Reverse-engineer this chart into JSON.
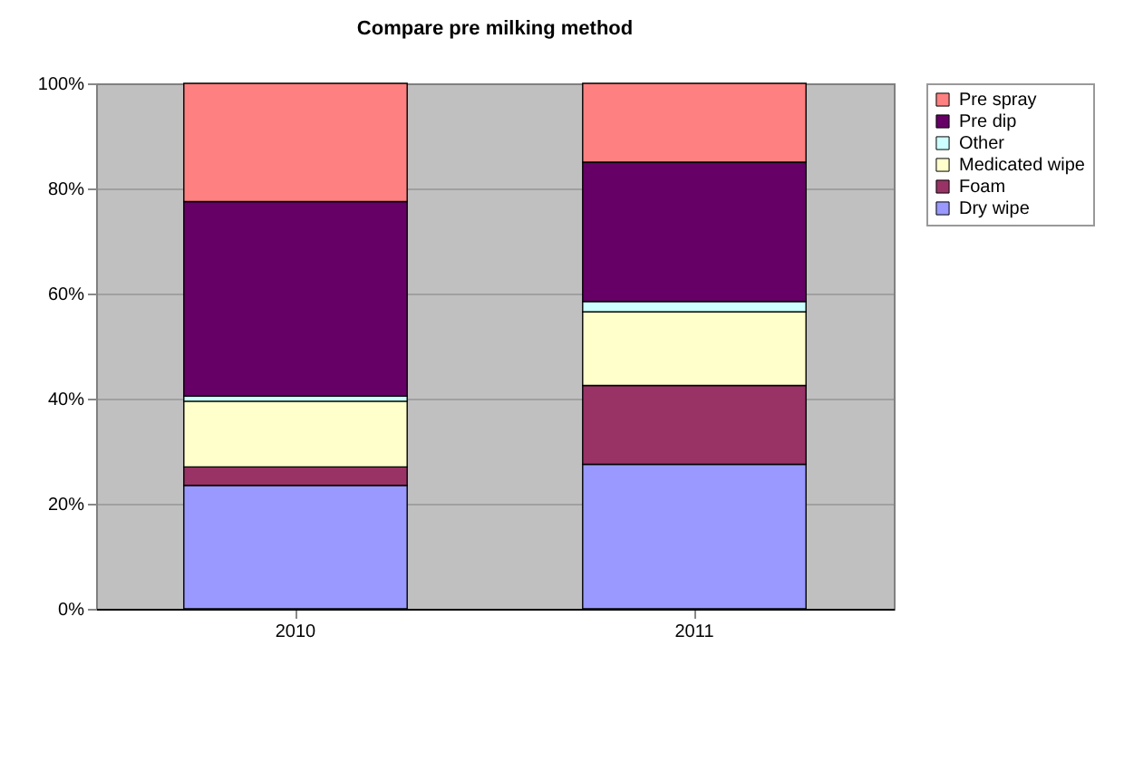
{
  "chart_data": {
    "type": "bar",
    "title": "Compare pre milking method",
    "categories": [
      "2010",
      "2011"
    ],
    "stacked": true,
    "series": [
      {
        "name": "Dry wipe",
        "color": "#9999ff",
        "values": [
          23.5,
          27.5
        ]
      },
      {
        "name": "Foam",
        "color": "#993366",
        "values": [
          3.5,
          15
        ]
      },
      {
        "name": "Medicated wipe",
        "color": "#ffffcc",
        "values": [
          12.5,
          14
        ]
      },
      {
        "name": "Other",
        "color": "#ccffff",
        "values": [
          1,
          2
        ]
      },
      {
        "name": "Pre dip",
        "color": "#660066",
        "values": [
          37,
          26.5
        ]
      },
      {
        "name": "Pre spray",
        "color": "#ff8080",
        "values": [
          22.5,
          15
        ]
      }
    ],
    "ylim": [
      0,
      100
    ],
    "yticks": [
      {
        "value": 0,
        "label": "0%"
      },
      {
        "value": 20,
        "label": "20%"
      },
      {
        "value": 40,
        "label": "40%"
      },
      {
        "value": 60,
        "label": "60%"
      },
      {
        "value": 80,
        "label": "80%"
      },
      {
        "value": 100,
        "label": "100%"
      }
    ],
    "grid": "y",
    "legend": "right"
  }
}
